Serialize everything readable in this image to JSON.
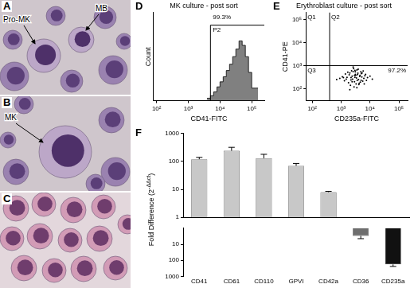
{
  "images": [
    {
      "panel": "A",
      "labels": [
        "Pro-MK",
        "MB"
      ]
    },
    {
      "panel": "B",
      "labels": [
        "MK"
      ]
    },
    {
      "panel": "C",
      "labels": []
    }
  ],
  "chart_data": [
    {
      "panel": "D",
      "type": "histogram",
      "title": "MK culture - post sort",
      "x_label": "CD41-FITC",
      "y_label": "Count",
      "bins": [
        4000,
        5000,
        6300,
        8000,
        10000,
        12600,
        15800,
        20000,
        25100,
        31600,
        39800,
        50100,
        63100,
        79400,
        100000,
        125900,
        158500
      ],
      "counts": [
        2,
        4,
        8,
        14,
        22,
        30,
        38,
        48,
        58,
        70,
        82,
        95,
        88,
        70,
        45,
        20
      ],
      "color": "#808080",
      "log": "x",
      "xlim": [
        80,
        250000
      ],
      "xticks": [
        {
          "value": 100,
          "label": "10²"
        },
        {
          "value": 1000,
          "label": "10³"
        },
        {
          "value": 10000,
          "label": "10⁴"
        },
        {
          "value": 100000,
          "label": "10⁵"
        }
      ],
      "ylim": [
        0,
        140
      ],
      "tick_labels": "x",
      "gate": {
        "name": "P2",
        "percent_label": "99.3%",
        "x": [
          5000,
          250000
        ],
        "y": 120
      }
    },
    {
      "panel": "E",
      "type": "scatter",
      "title": "Erythroblast culture - post sort",
      "x_label": "CD235a-FITC",
      "y_label": "CD41-PE",
      "x": [
        2200,
        3100,
        4000,
        1800,
        2600,
        5200,
        3500,
        1500,
        2900,
        4500,
        6100,
        2100,
        3800,
        2400,
        7000,
        1300,
        3300,
        4800,
        2700,
        1900,
        5600,
        3000,
        2300,
        4200,
        1100,
        3600,
        6600,
        2000,
        2800,
        5000,
        900,
        3900,
        8200,
        2500,
        3200,
        1700,
        4600,
        2200,
        5800,
        3400,
        1400,
        2600,
        10000,
        4100,
        3000,
        2000,
        7500,
        3700,
        1200,
        2400,
        5300,
        12000,
        3100,
        4400,
        700,
        2900,
        6300,
        1600,
        3500,
        4900
      ],
      "values": [
        300,
        420,
        250,
        180,
        550,
        320,
        650,
        260,
        200,
        380,
        280,
        140,
        470,
        350,
        420,
        220,
        160,
        540,
        740,
        400,
        210,
        310,
        600,
        170,
        330,
        230,
        360,
        480,
        120,
        450,
        280,
        700,
        300,
        260,
        380,
        520,
        190,
        240,
        580,
        290,
        430,
        870,
        350,
        150,
        620,
        90,
        230,
        410,
        300,
        200,
        480,
        260,
        540,
        340,
        250,
        380,
        160,
        310,
        110,
        230
      ],
      "color": "#000000",
      "marker": "dot",
      "log": true,
      "xlim": [
        60,
        200000
      ],
      "ylim": [
        30,
        200000
      ],
      "xticks": [
        {
          "value": 100,
          "label": "10²"
        },
        {
          "value": 1000,
          "label": "10³"
        },
        {
          "value": 10000,
          "label": "10⁴"
        },
        {
          "value": 100000,
          "label": "10⁵"
        }
      ],
      "yticks": [
        {
          "value": 100,
          "label": "10²"
        },
        {
          "value": 1000,
          "label": "10³"
        },
        {
          "value": 10000,
          "label": "10⁴"
        },
        {
          "value": 100000,
          "label": "10⁵"
        }
      ],
      "quadrants": {
        "x": 400,
        "y": 1000,
        "labels": [
          "Q1",
          "Q2",
          "Q3",
          "97.2%"
        ]
      }
    },
    {
      "panel": "F",
      "type": "bar",
      "y_label": [
        "Fold Difference (2",
        {
          "sup": "-ΔΔct"
        },
        ")"
      ],
      "categories": [
        null,
        null,
        null,
        null,
        null,
        null,
        null
      ],
      "values": [
        120,
        240,
        130,
        70,
        8,
        null,
        null
      ],
      "errors": [
        20,
        80,
        50,
        15,
        0.5,
        null,
        null
      ],
      "colors": [
        "#c8c8c8",
        "#c8c8c8",
        "#c8c8c8",
        "#c8c8c8",
        "#c8c8c8",
        "#6e6e6e",
        "#111111"
      ],
      "log": "y",
      "ylim": [
        1,
        1000
      ],
      "yticks": [
        1,
        10,
        100,
        1000
      ],
      "tick_labels": "y"
    },
    {
      "type": "bar",
      "categories": [
        "CD41",
        "CD61",
        "CD110",
        "GPVI",
        "CD42a",
        "CD36",
        "CD235a"
      ],
      "values": [
        null,
        null,
        null,
        null,
        null,
        3,
        180
      ],
      "errors": [
        null,
        null,
        null,
        null,
        null,
        1.5,
        60
      ],
      "colors": [
        "#c8c8c8",
        "#c8c8c8",
        "#c8c8c8",
        "#c8c8c8",
        "#c8c8c8",
        "#6e6e6e",
        "#111111"
      ],
      "log": "y",
      "ylim": [
        1000,
        1
      ],
      "yticks": [
        10,
        100,
        1000
      ]
    }
  ]
}
